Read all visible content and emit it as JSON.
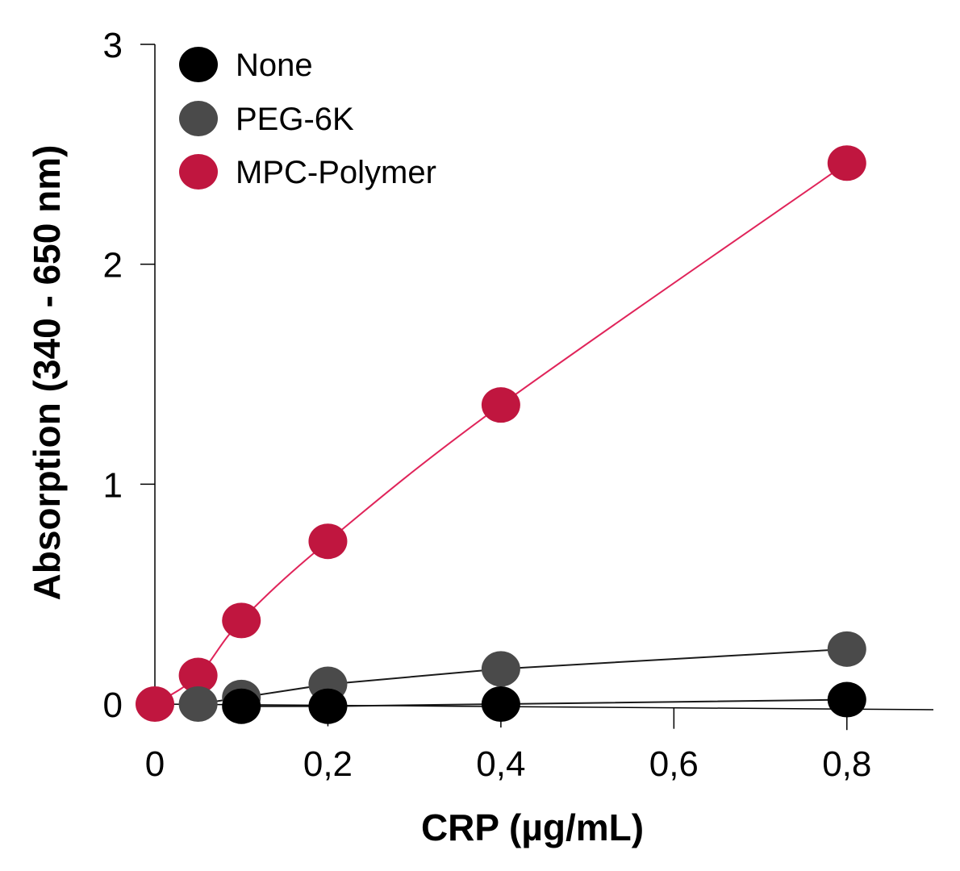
{
  "chart_data": {
    "type": "line",
    "title": "",
    "xlabel": "CRP (µg/mL)",
    "ylabel": "Absorption (340 - 650 nm)",
    "xlim": [
      0,
      0.9
    ],
    "ylim": [
      0,
      3
    ],
    "xticks": [
      0,
      0.2,
      0.4,
      0.6,
      0.8
    ],
    "xtick_labels": [
      "0",
      "0,2",
      "0,4",
      "0,6",
      "0,8"
    ],
    "yticks": [
      0,
      1,
      2,
      3
    ],
    "ytick_labels": [
      "0",
      "1",
      "2",
      "3"
    ],
    "grid": false,
    "legend_position": "top-left",
    "series": [
      {
        "name": "None",
        "color": "#000000",
        "line_color": "#1a1a1a",
        "x": [
          0.1,
          0.2,
          0.4,
          0.8
        ],
        "values": [
          -0.01,
          -0.01,
          0.0,
          0.02
        ]
      },
      {
        "name": "PEG-6K",
        "color": "#4a4a4a",
        "line_color": "#1a1a1a",
        "x": [
          0.05,
          0.1,
          0.2,
          0.4,
          0.8
        ],
        "values": [
          0.0,
          0.03,
          0.09,
          0.16,
          0.25
        ]
      },
      {
        "name": "MPC-Polymer",
        "color": "#c0163f",
        "line_color": "#e0245a",
        "x": [
          0.0,
          0.05,
          0.1,
          0.2,
          0.4,
          0.8
        ],
        "values": [
          0.0,
          0.13,
          0.38,
          0.74,
          1.36,
          2.46
        ]
      }
    ]
  }
}
